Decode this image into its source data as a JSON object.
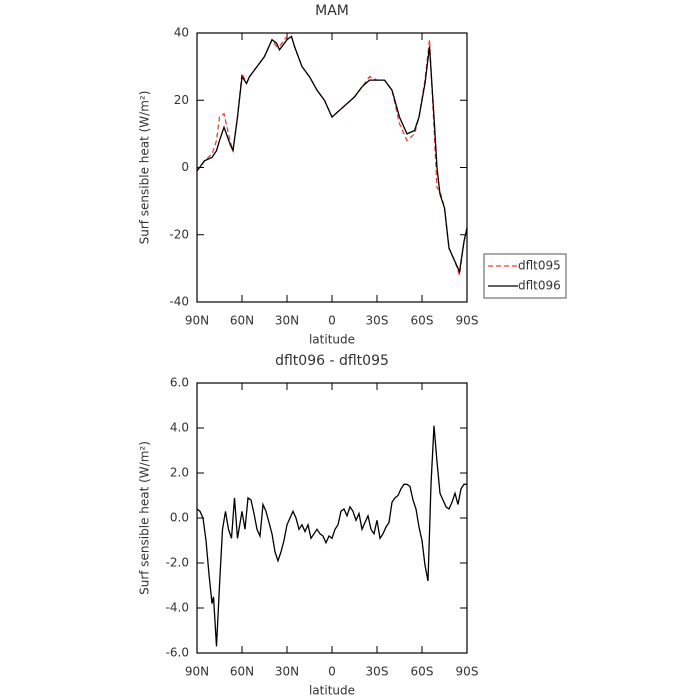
{
  "chart_data": [
    {
      "type": "line",
      "title": "MAM",
      "xlabel": "latitude",
      "ylabel": "Surf sensible heat (W/m²)",
      "x": [
        90,
        85,
        80,
        77,
        75,
        72,
        68,
        66,
        63,
        60,
        57,
        55,
        50,
        45,
        40,
        37,
        35,
        30,
        27,
        25,
        20,
        15,
        10,
        5,
        0,
        -5,
        -10,
        -15,
        -20,
        -25,
        -30,
        -35,
        -40,
        -45,
        -50,
        -55,
        -58,
        -62,
        -65,
        -68,
        -70,
        -72,
        -75,
        -78,
        -82,
        -85,
        -88,
        -90
      ],
      "series": [
        {
          "name": "dflt095",
          "color": "#e8403a",
          "linestyle": "dashed",
          "values": [
            -1,
            2,
            4,
            8,
            15,
            16,
            8,
            5,
            15,
            28,
            25,
            27,
            30,
            33,
            38,
            36,
            36,
            39,
            39,
            36,
            30,
            27,
            23,
            20,
            15,
            17,
            19,
            21,
            24,
            27,
            26,
            26,
            23,
            13,
            8,
            10,
            15,
            26,
            38,
            12,
            -6,
            -7,
            -12,
            -24,
            -28,
            -32,
            -22,
            -18
          ]
        },
        {
          "name": "dflt096",
          "color": "#000000",
          "linestyle": "solid",
          "values": [
            -1,
            2,
            3,
            5,
            8,
            12,
            7,
            5,
            15,
            27,
            25,
            27,
            30,
            33,
            38,
            37,
            35,
            38,
            39,
            36,
            30,
            27,
            23,
            20,
            15,
            17,
            19,
            21,
            24,
            26,
            26,
            26,
            23,
            15,
            10,
            11,
            15,
            25,
            36,
            15,
            0,
            -8,
            -12,
            -24,
            -28,
            -31,
            -22,
            -18
          ]
        }
      ],
      "xlim": [
        90,
        -90
      ],
      "xticks": [
        {
          "value": 90,
          "label": "90N"
        },
        {
          "value": 60,
          "label": "60N"
        },
        {
          "value": 30,
          "label": "30N"
        },
        0,
        {
          "value": -30,
          "label": "30S"
        },
        {
          "value": -60,
          "label": "60S"
        },
        {
          "value": -90,
          "label": "90S"
        }
      ],
      "ylim": [
        -40,
        40
      ],
      "yticks": [
        -40,
        -20,
        0,
        20,
        40
      ],
      "legend": "right"
    },
    {
      "type": "line",
      "title": "dflt096 - dflt095",
      "xlabel": "latitude",
      "ylabel": "Surf sensible heat (W/m²)",
      "x": [
        90,
        88,
        86,
        84,
        82,
        80,
        79,
        77,
        75,
        73,
        71,
        69,
        67,
        65,
        63,
        60,
        58,
        56,
        54,
        52,
        50,
        48,
        46,
        44,
        42,
        40,
        38,
        36,
        34,
        32,
        30,
        28,
        26,
        24,
        22,
        20,
        18,
        16,
        14,
        12,
        10,
        8,
        6,
        4,
        2,
        0,
        -2,
        -4,
        -6,
        -8,
        -10,
        -12,
        -14,
        -16,
        -18,
        -20,
        -22,
        -24,
        -26,
        -28,
        -30,
        -32,
        -34,
        -36,
        -38,
        -40,
        -42,
        -44,
        -46,
        -48,
        -50,
        -52,
        -54,
        -56,
        -58,
        -60,
        -62,
        -64,
        -66,
        -68,
        -70,
        -72,
        -74,
        -76,
        -78,
        -80,
        -82,
        -84,
        -86,
        -88,
        -90
      ],
      "series": [
        {
          "color": "#000000",
          "linestyle": "solid",
          "values": [
            0.4,
            0.3,
            0.0,
            -1.0,
            -2.5,
            -3.8,
            -3.5,
            -5.7,
            -3.0,
            -0.5,
            0.3,
            -0.5,
            -0.9,
            0.9,
            -0.9,
            0.3,
            -0.5,
            0.9,
            0.8,
            0.2,
            -0.5,
            -0.8,
            0.6,
            0.3,
            -0.2,
            -0.7,
            -1.5,
            -1.9,
            -1.5,
            -1.0,
            -0.3,
            0.0,
            0.3,
            0.0,
            -0.5,
            -0.3,
            -0.6,
            -0.3,
            -0.9,
            -0.7,
            -0.5,
            -0.7,
            -0.8,
            -1.1,
            -0.8,
            -0.9,
            -0.5,
            -0.3,
            0.3,
            0.4,
            0.1,
            0.5,
            0.3,
            -0.1,
            0.2,
            -0.5,
            -0.2,
            0.1,
            -0.5,
            -0.7,
            -0.1,
            -0.9,
            -0.7,
            -0.4,
            -0.2,
            0.7,
            0.9,
            1.0,
            1.3,
            1.5,
            1.5,
            1.4,
            0.8,
            0.4,
            -0.4,
            -1.0,
            -2.1,
            -2.8,
            1.5,
            4.1,
            2.5,
            1.1,
            0.8,
            0.5,
            0.4,
            0.7,
            1.1,
            0.6,
            1.3,
            1.5,
            1.5
          ]
        }
      ],
      "xlim": [
        90,
        -90
      ],
      "xticks": [
        {
          "value": 90,
          "label": "90N"
        },
        {
          "value": 60,
          "label": "60N"
        },
        {
          "value": 30,
          "label": "30N"
        },
        0,
        {
          "value": -30,
          "label": "30S"
        },
        {
          "value": -60,
          "label": "60S"
        },
        {
          "value": -90,
          "label": "90S"
        }
      ],
      "ylim": [
        -6,
        6
      ],
      "yticks": [
        {
          "value": -6,
          "label": "-6.0"
        },
        {
          "value": -4,
          "label": "-4.0"
        },
        {
          "value": -2,
          "label": "-2.0"
        },
        {
          "value": 0,
          "label": "0.0"
        },
        {
          "value": 2,
          "label": "2.0"
        },
        {
          "value": 4,
          "label": "4.0"
        },
        {
          "value": 6,
          "label": "6.0"
        }
      ]
    }
  ]
}
